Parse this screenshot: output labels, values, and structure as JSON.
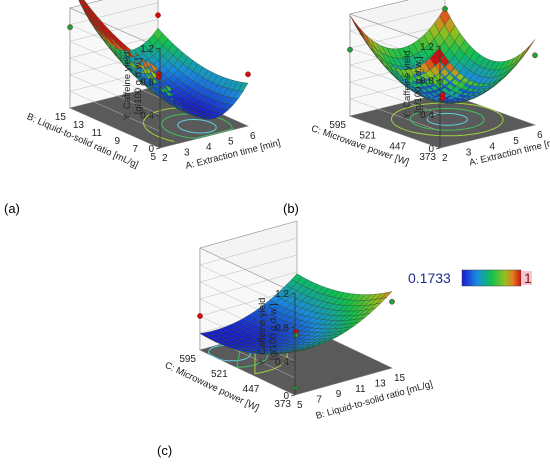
{
  "figure": {
    "legend": {
      "min_label": "0.1733",
      "max_label": "1"
    }
  },
  "chart_data": [
    {
      "type": "surface",
      "panel_label": "(a)",
      "zlabel": [
        "Y: Caffeine yield",
        "[g/100 g d.w.]"
      ],
      "xlabel": "A: Extraction time [min]",
      "ylabel": "B: Liquid-to-solid ratio [mL/g]",
      "x_ticks": [
        "2",
        "3",
        "4",
        "5",
        "6"
      ],
      "y_ticks": [
        "5",
        "7",
        "9",
        "11",
        "13",
        "15"
      ],
      "z_ticks": [
        "0",
        "0.4",
        "0.8",
        "1.2"
      ],
      "xlim": [
        2,
        6
      ],
      "ylim": [
        5,
        15
      ],
      "zlim": [
        0,
        1.2
      ],
      "surface": {
        "x_center": 4.5,
        "y_center": 7.0,
        "z_min": 0.17,
        "a_x": 0.13,
        "a_y": 0.0055,
        "b_xy": -0.01
      },
      "points": [
        {
          "x": 2,
          "y": 15,
          "z": 0.97
        },
        {
          "x": 6,
          "y": 15,
          "z": 0.85
        },
        {
          "x": 6,
          "y": 5,
          "z": 0.62
        },
        {
          "x": 4,
          "y": 10,
          "z": 0.52
        },
        {
          "x": 4,
          "y": 10,
          "z": 0.48
        }
      ]
    },
    {
      "type": "surface",
      "panel_label": "(b)",
      "zlabel": [
        "Y: Caffeine yield",
        "[g/100 g d.w.]"
      ],
      "xlabel": "A: Extraction time [min]",
      "ylabel": "C: Microwave power [W]",
      "x_ticks": [
        "2",
        "3",
        "4",
        "5",
        "6"
      ],
      "y_ticks": [
        "373",
        "447",
        "521",
        "595"
      ],
      "z_ticks": [
        "0",
        "0.4",
        "0.8",
        "1.2"
      ],
      "xlim": [
        2,
        6
      ],
      "ylim": [
        373,
        595
      ],
      "zlim": [
        0,
        1.2
      ],
      "surface": {
        "x_center": 4.2,
        "y_center": 484,
        "z_min": 0.22,
        "a_x": 0.11,
        "a_y": 3.5e-05,
        "b_xy": 0.0
      },
      "points": [
        {
          "x": 2,
          "y": 595,
          "z": 0.78
        },
        {
          "x": 6,
          "y": 595,
          "z": 0.99
        },
        {
          "x": 6,
          "y": 373,
          "z": 0.82
        },
        {
          "x": 2,
          "y": 373,
          "z": 0.78
        },
        {
          "x": 4,
          "y": 484,
          "z": 0.3
        },
        {
          "x": 4,
          "y": 484,
          "z": 0.26
        }
      ]
    },
    {
      "type": "surface",
      "panel_label": "(c)",
      "zlabel": [
        "Y: Caffeine yield",
        "[g/100 g d.w.]"
      ],
      "xlabel": "B: Liquid-to-solid ratio [mL/g]",
      "ylabel": "C: Microwave power [W]",
      "x_ticks": [
        "5",
        "7",
        "9",
        "11",
        "13",
        "15"
      ],
      "y_ticks": [
        "373",
        "447",
        "521",
        "595"
      ],
      "z_ticks": [
        "0",
        "0.4",
        "0.8",
        "1.2"
      ],
      "xlim": [
        5,
        15
      ],
      "ylim": [
        373,
        595
      ],
      "zlim": [
        0,
        1.2
      ],
      "surface": {
        "x_center": 6.5,
        "y_center": 560,
        "z_min": 0.17,
        "a_x": 0.0055,
        "a_y": 9.5e-06,
        "b_xy": 0.0
      },
      "points": [
        {
          "x": 5,
          "y": 595,
          "z": 0.4
        },
        {
          "x": 15,
          "y": 373,
          "z": 0.78
        },
        {
          "x": 10,
          "y": 484,
          "z": 0.32
        },
        {
          "x": 10,
          "y": 484,
          "z": 0.28
        },
        {
          "x": 5,
          "y": 373,
          "z": 0.08
        }
      ]
    }
  ]
}
